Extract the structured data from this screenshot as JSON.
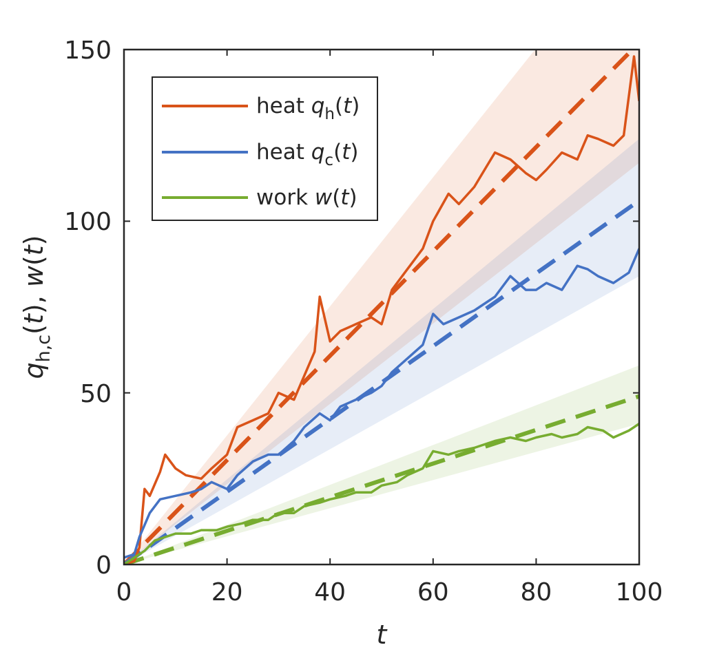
{
  "chart_data": {
    "type": "line",
    "xlabel": "t",
    "ylabel": {
      "q": "q",
      "sub": "h,c",
      "rest1": "(",
      "t1": "t",
      "rest2": "), ",
      "w": "w",
      "rest3": "(",
      "t2": "t",
      "rest4": ")"
    },
    "xlim": [
      0,
      100
    ],
    "ylim": [
      0,
      150
    ],
    "xticks": [
      "0",
      "20",
      "40",
      "60",
      "80",
      "100"
    ],
    "yticks": [
      "0",
      "50",
      "100",
      "150"
    ],
    "legend_position": "top-left",
    "series": [
      {
        "name": "heat q_h(t)",
        "legend": {
          "word": "heat",
          "sym": "q",
          "sub": "h",
          "arg": "(",
          "t": "t",
          "close": ")"
        },
        "color": "#D95319",
        "mean_slope": 1.52,
        "band": {
          "low_slope": 1.17,
          "high_slope": 1.88
        },
        "x": [
          0,
          2,
          3,
          4,
          5,
          7,
          8,
          10,
          12,
          15,
          17,
          20,
          22,
          25,
          28,
          30,
          33,
          35,
          37,
          38,
          40,
          42,
          45,
          48,
          50,
          51,
          52,
          55,
          58,
          60,
          63,
          65,
          68,
          70,
          72,
          75,
          78,
          80,
          82,
          85,
          88,
          90,
          92,
          95,
          97,
          99,
          100
        ],
        "values": [
          0,
          1,
          5,
          22,
          20,
          27,
          32,
          28,
          26,
          25,
          28,
          32,
          40,
          42,
          44,
          50,
          48,
          55,
          62,
          78,
          65,
          68,
          70,
          72,
          70,
          75,
          80,
          86,
          92,
          100,
          108,
          105,
          110,
          115,
          120,
          118,
          114,
          112,
          115,
          120,
          118,
          125,
          124,
          122,
          125,
          148,
          135
        ]
      },
      {
        "name": "heat q_c(t)",
        "legend": {
          "word": "heat",
          "sym": "q",
          "sub": "c",
          "arg": "(",
          "t": "t",
          "close": ")"
        },
        "color": "#4472C4",
        "mean_slope": 1.06,
        "band": {
          "low_slope": 0.84,
          "high_slope": 1.24
        },
        "x": [
          0,
          2,
          3,
          5,
          7,
          10,
          13,
          15,
          17,
          20,
          22,
          25,
          28,
          30,
          33,
          35,
          38,
          40,
          42,
          45,
          48,
          50,
          52,
          55,
          58,
          60,
          62,
          65,
          68,
          70,
          72,
          75,
          78,
          80,
          82,
          85,
          88,
          90,
          92,
          95,
          98,
          100
        ],
        "values": [
          2,
          3,
          8,
          15,
          19,
          20,
          21,
          22,
          24,
          22,
          26,
          30,
          32,
          32,
          36,
          40,
          44,
          42,
          46,
          48,
          50,
          52,
          56,
          60,
          64,
          73,
          70,
          72,
          74,
          76,
          78,
          84,
          80,
          80,
          82,
          80,
          87,
          86,
          84,
          82,
          85,
          92
        ]
      },
      {
        "name": "work w(t)",
        "legend": {
          "word": "work",
          "sym": "w",
          "sub": "",
          "arg": "(",
          "t": "t",
          "close": ")"
        },
        "color": "#77AC30",
        "mean_slope": 0.49,
        "band": {
          "low_slope": 0.41,
          "high_slope": 0.58
        },
        "x": [
          0,
          2,
          4,
          6,
          8,
          10,
          13,
          15,
          18,
          20,
          23,
          25,
          28,
          30,
          33,
          35,
          38,
          40,
          43,
          45,
          48,
          50,
          53,
          55,
          58,
          60,
          63,
          65,
          68,
          70,
          72,
          75,
          78,
          80,
          83,
          85,
          88,
          90,
          93,
          95,
          98,
          100
        ],
        "values": [
          0,
          2,
          4,
          7,
          8,
          9,
          9,
          10,
          10,
          11,
          12,
          13,
          13,
          15,
          15,
          17,
          18,
          19,
          20,
          21,
          21,
          23,
          24,
          26,
          28,
          33,
          32,
          33,
          34,
          35,
          36,
          37,
          36,
          37,
          38,
          37,
          38,
          40,
          39,
          37,
          39,
          41
        ]
      }
    ]
  }
}
